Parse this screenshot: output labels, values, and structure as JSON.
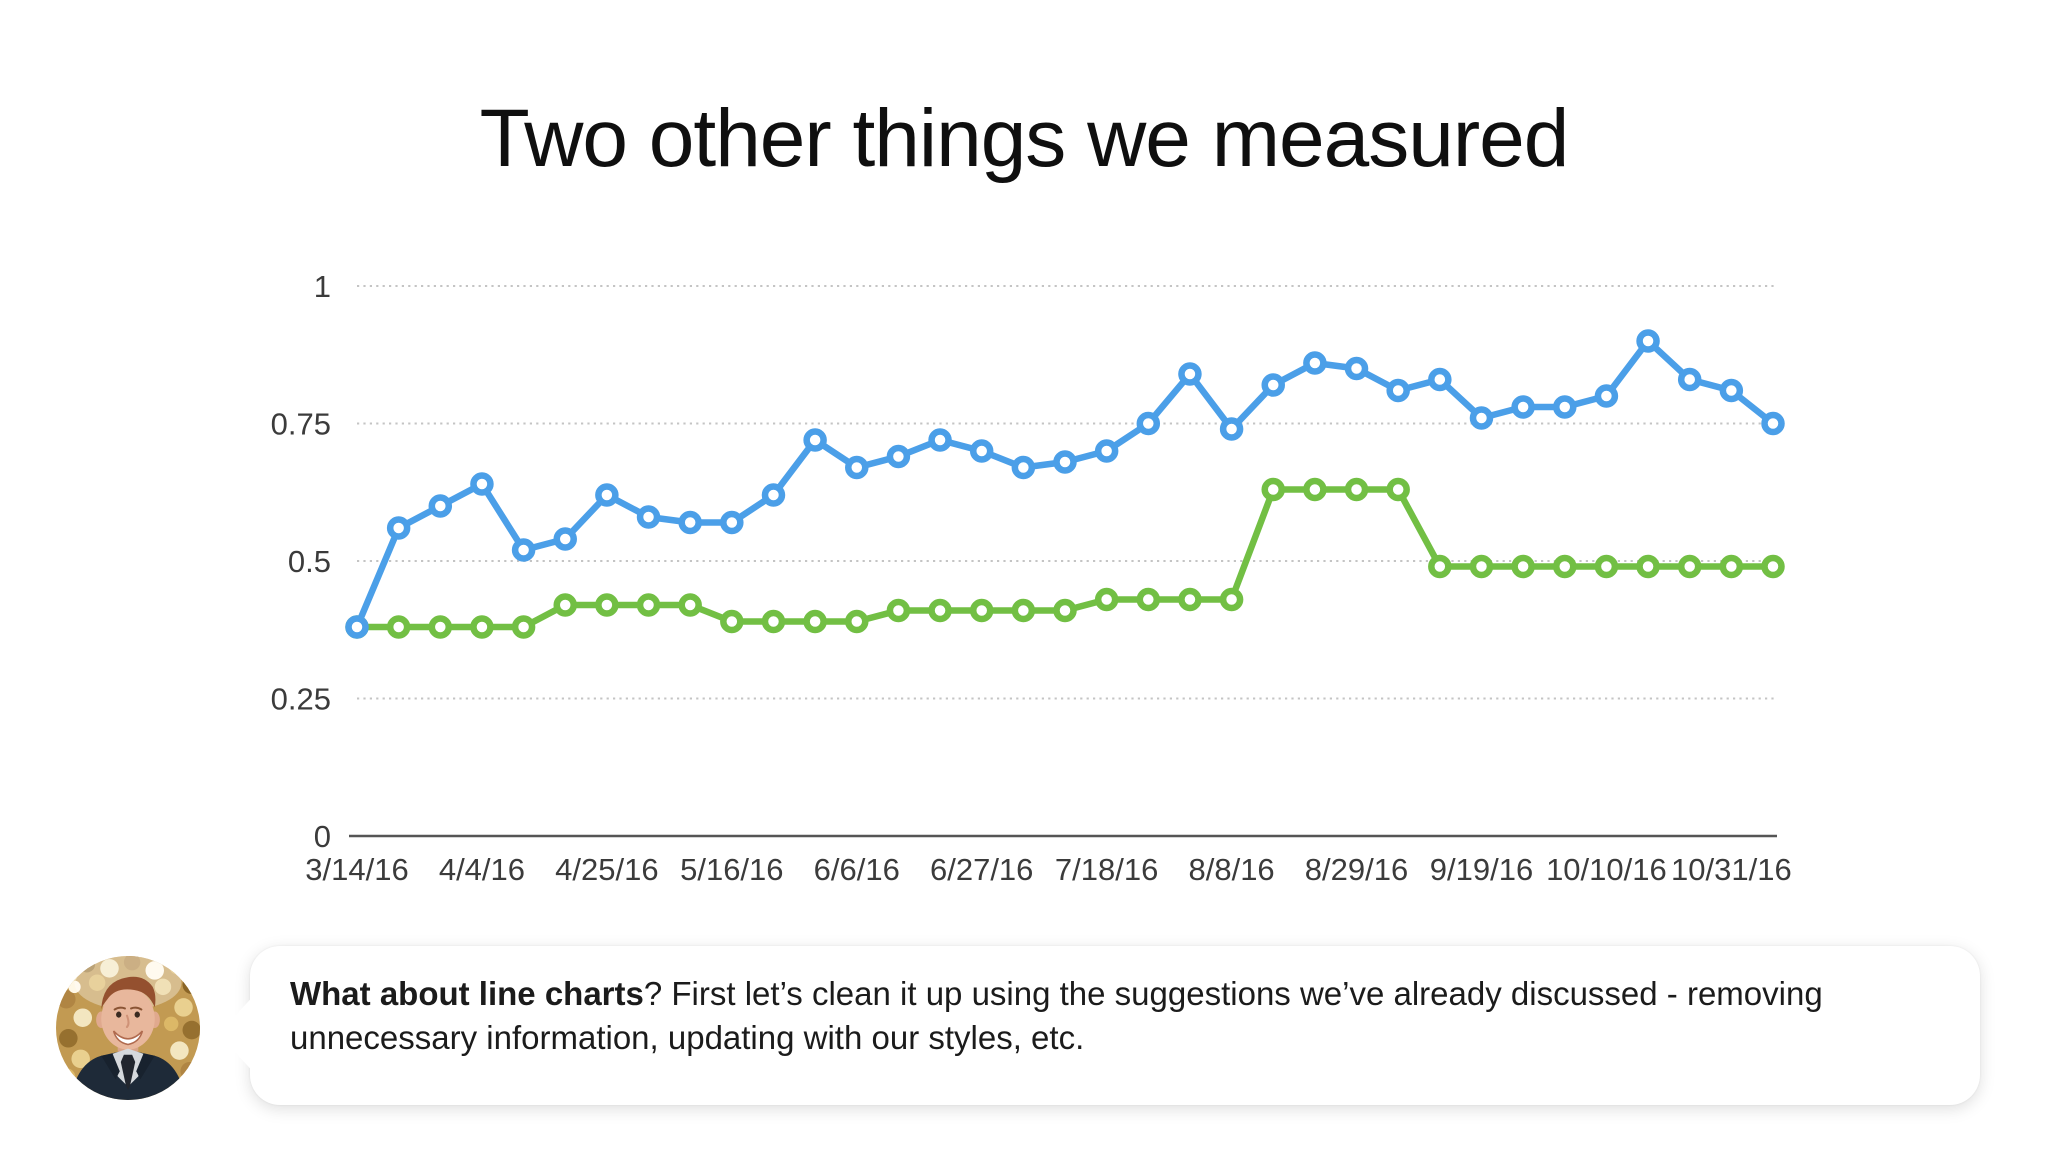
{
  "title": "Two other things we measured",
  "chart_data": {
    "type": "line",
    "title": "Two other things we measured",
    "x_tick_labels": [
      "3/14/16",
      "4/4/16",
      "4/25/16",
      "5/16/16",
      "6/6/16",
      "6/27/16",
      "7/18/16",
      "8/8/16",
      "8/29/16",
      "9/19/16",
      "10/10/16",
      "10/31/16"
    ],
    "tick_indices": [
      0,
      3,
      6,
      9,
      12,
      15,
      18,
      21,
      24,
      27,
      30,
      33
    ],
    "n_points": 35,
    "x_interval": "weekly",
    "series": [
      {
        "name": "green",
        "color": "#72bf44",
        "values": [
          0.38,
          0.38,
          0.38,
          0.38,
          0.38,
          0.42,
          0.42,
          0.42,
          0.42,
          0.39,
          0.39,
          0.39,
          0.39,
          0.41,
          0.41,
          0.41,
          0.41,
          0.41,
          0.43,
          0.43,
          0.43,
          0.43,
          0.63,
          0.63,
          0.63,
          0.63,
          0.49,
          0.49,
          0.49,
          0.49,
          0.49,
          0.49,
          0.49,
          0.49,
          0.49
        ]
      },
      {
        "name": "blue",
        "color": "#4b9fe8",
        "values": [
          0.38,
          0.56,
          0.6,
          0.64,
          0.52,
          0.54,
          0.62,
          0.58,
          0.57,
          0.57,
          0.62,
          0.72,
          0.67,
          0.69,
          0.72,
          0.7,
          0.67,
          0.68,
          0.7,
          0.75,
          0.84,
          0.74,
          0.82,
          0.86,
          0.85,
          0.81,
          0.83,
          0.76,
          0.78,
          0.78,
          0.8,
          0.9,
          0.83,
          0.81,
          0.75
        ]
      }
    ],
    "ylim": [
      0,
      1
    ],
    "yticks": [
      0,
      0.25,
      0.5,
      0.75,
      1
    ],
    "ytick_labels": [
      "0",
      "0.25",
      "0.5",
      "0.75",
      "1"
    ],
    "grid": "horizontal dotted",
    "legend": "none",
    "colors": {
      "grid": "#c4c4c4",
      "axis": "#555555",
      "tick": "#3b3b3b"
    }
  },
  "speech_bubble": {
    "bold_text": "What about line charts",
    "body_text": "? First let’s clean it up using the suggestions we’ve already discussed - removing unnecessary information, updating with our styles, etc."
  },
  "avatar": {
    "description": "smiling man with short auburn hair in dark suit and tie, gold sequin background"
  }
}
